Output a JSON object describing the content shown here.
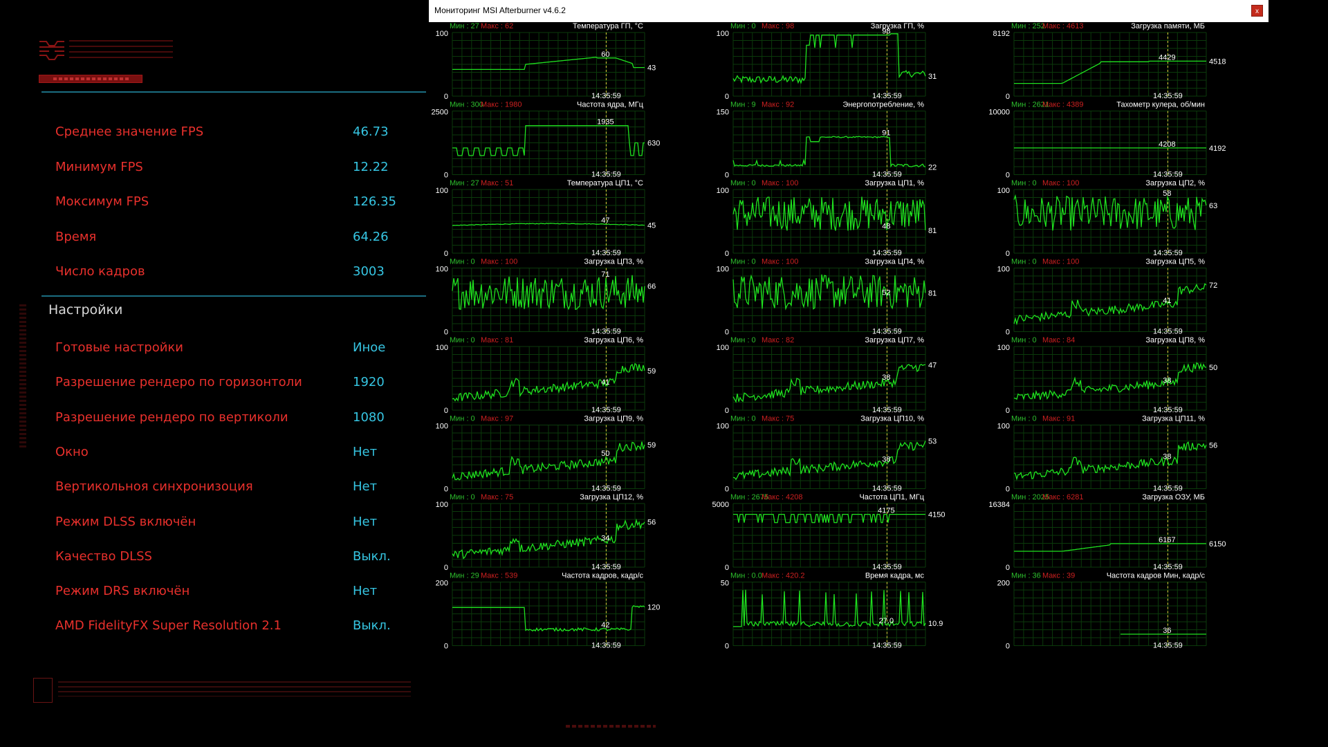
{
  "benchmark": {
    "results": [
      {
        "label": "Среднее значение FPS",
        "value": "46.73"
      },
      {
        "label": "Минимум FPS",
        "value": "12.22"
      },
      {
        "label": "Моксимум FPS",
        "value": "126.35"
      },
      {
        "label": "Время",
        "value": "64.26"
      },
      {
        "label": "Число кадров",
        "value": "3003"
      }
    ],
    "settings_title": "Настройки",
    "settings": [
      {
        "label": "Готовые настройки",
        "value": "Иное"
      },
      {
        "label": "Разрешение рендеро по горизонтоли",
        "value": "1920"
      },
      {
        "label": "Разрешение рендеро по вертиколи",
        "value": "1080"
      },
      {
        "label": "Окно",
        "value": "Нет"
      },
      {
        "label": "Вертикольноя синхронизоция",
        "value": "Нет"
      },
      {
        "label": "Режим DLSS включён",
        "value": "Нет"
      },
      {
        "label": "Качество DLSS",
        "value": "Выкл."
      },
      {
        "label": "Режим DRS включён",
        "value": "Нет"
      },
      {
        "label": "AMD FidelityFX Super Resolution 2.1",
        "value": "Выкл."
      }
    ]
  },
  "afterburner": {
    "title": "Мониторинг MSI Afterburner v4.6.2",
    "close_label": "x",
    "time": "14:35:59",
    "colors": {
      "line": "#1fe21f",
      "grid": "#0b3a0b",
      "min": "#2dbf2d",
      "max": "#cc2020",
      "text": "#ffffff",
      "cursor": "#e8d840"
    },
    "graphs": [
      {
        "min": "Мин : 27",
        "max": "Макс : 62",
        "title": "Температура ГП, °С",
        "ymax": "100",
        "ymin": "0",
        "cur": "60",
        "last": "43",
        "pattern": "gputemp"
      },
      {
        "min": "Мин : 0",
        "max": "Макс : 98",
        "title": "Загрузка ГП, %",
        "ymax": "100",
        "ymin": "0",
        "cur": "98",
        "last": "31",
        "pattern": "gpuload"
      },
      {
        "min": "Мин : 252",
        "max": "Макс : 4613",
        "title": "Загрузка памяти, МБ",
        "ymax": "8192",
        "ymin": "0",
        "cur": "4429",
        "last": "4518",
        "pattern": "mem"
      },
      {
        "min": "Мин : 300",
        "max": "Макс : 1980",
        "title": "Частота ядра, МГц",
        "ymax": "2500",
        "ymin": "0",
        "cur": "1935",
        "last": "630",
        "pattern": "coreclk"
      },
      {
        "min": "Мин : 9",
        "max": "Макс : 92",
        "title": "Энергопотребление, %",
        "ymax": "150",
        "ymin": "0",
        "cur": "91",
        "last": "22",
        "pattern": "power"
      },
      {
        "min": "Мин : 2621",
        "max": "Макс : 4389",
        "title": "Тахометр кулера, об/мин",
        "ymax": "10000",
        "ymin": "0",
        "cur": "4208",
        "last": "4192",
        "pattern": "fan"
      },
      {
        "min": "Мин : 27",
        "max": "Макс : 51",
        "title": "Температура ЦП1, °С",
        "ymax": "100",
        "ymin": "0",
        "cur": "47",
        "last": "45",
        "pattern": "cputemp"
      },
      {
        "min": "Мин : 0",
        "max": "Макс : 100",
        "title": "Загрузка ЦП1, %",
        "ymax": "100",
        "ymin": "0",
        "cur": "48",
        "last": "81",
        "pattern": "noisy"
      },
      {
        "min": "Мин : 0",
        "max": "Макс : 100",
        "title": "Загрузка ЦП2, %",
        "ymax": "100",
        "ymin": "0",
        "cur": "58",
        "last": "63",
        "pattern": "noisy"
      },
      {
        "min": "Мин : 0",
        "max": "Макс : 100",
        "title": "Загрузка ЦП3, %",
        "ymax": "100",
        "ymin": "0",
        "cur": "71",
        "last": "66",
        "pattern": "noisy"
      },
      {
        "min": "Мин : 0",
        "max": "Макс : 100",
        "title": "Загрузка ЦП4, %",
        "ymax": "100",
        "ymin": "0",
        "cur": "52",
        "last": "81",
        "pattern": "noisy"
      },
      {
        "min": "Мин : 0",
        "max": "Макс : 100",
        "title": "Загрузка ЦП5, %",
        "ymax": "100",
        "ymin": "0",
        "cur": "41",
        "last": "72",
        "pattern": "rising"
      },
      {
        "min": "Мин : 0",
        "max": "Макс : 81",
        "title": "Загрузка ЦП6, %",
        "ymax": "100",
        "ymin": "0",
        "cur": "41",
        "last": "59",
        "pattern": "rising"
      },
      {
        "min": "Мин : 0",
        "max": "Макс : 82",
        "title": "Загрузка ЦП7, %",
        "ymax": "100",
        "ymin": "0",
        "cur": "38",
        "last": "47",
        "pattern": "rising"
      },
      {
        "min": "Мин : 0",
        "max": "Макс : 84",
        "title": "Загрузка ЦП8, %",
        "ymax": "100",
        "ymin": "0",
        "cur": "38",
        "last": "50",
        "pattern": "rising"
      },
      {
        "min": "Мин : 0",
        "max": "Макс : 97",
        "title": "Загрузка ЦП9, %",
        "ymax": "100",
        "ymin": "0",
        "cur": "50",
        "last": "59",
        "pattern": "rising"
      },
      {
        "min": "Мин : 0",
        "max": "Макс : 75",
        "title": "Загрузка ЦП10, %",
        "ymax": "100",
        "ymin": "0",
        "cur": "38",
        "last": "53",
        "pattern": "rising"
      },
      {
        "min": "Мин : 0",
        "max": "Макс : 91",
        "title": "Загрузка ЦП11, %",
        "ymax": "100",
        "ymin": "0",
        "cur": "38",
        "last": "56",
        "pattern": "rising"
      },
      {
        "min": "Мин : 0",
        "max": "Макс : 75",
        "title": "Загрузка ЦП12, %",
        "ymax": "100",
        "ymin": "0",
        "cur": "34",
        "last": "56",
        "pattern": "rising"
      },
      {
        "min": "Мин : 2675",
        "max": "Макс : 4208",
        "title": "Частота ЦП1, МГц",
        "ymax": "5000",
        "ymin": "0",
        "cur": "4175",
        "last": "4150",
        "pattern": "cpuclk"
      },
      {
        "min": "Мин : 2025",
        "max": "Макс : 6281",
        "title": "Загрузка ОЗУ, МБ",
        "ymax": "16384",
        "ymin": "0",
        "cur": "6167",
        "last": "6150",
        "pattern": "ram"
      },
      {
        "min": "Мин : 29",
        "max": "Макс : 539",
        "title": "Частота кадров, кадр/с",
        "ymax": "200",
        "ymin": "0",
        "cur": "42",
        "last": "120",
        "pattern": "fps"
      },
      {
        "min": "Мин : 0.0",
        "max": "Макс : 420.2",
        "title": "Время кадра, мс",
        "ymax": "50",
        "ymin": "0",
        "cur": "27.0",
        "last": "10.9",
        "pattern": "frametime"
      },
      {
        "min": "Мин : 36",
        "max": "Макс : 39",
        "title": "Частота кадров Мин, кадр/с",
        "ymax": "200",
        "ymin": "0",
        "cur": "36",
        "last": "",
        "pattern": "fpsmin"
      }
    ]
  }
}
